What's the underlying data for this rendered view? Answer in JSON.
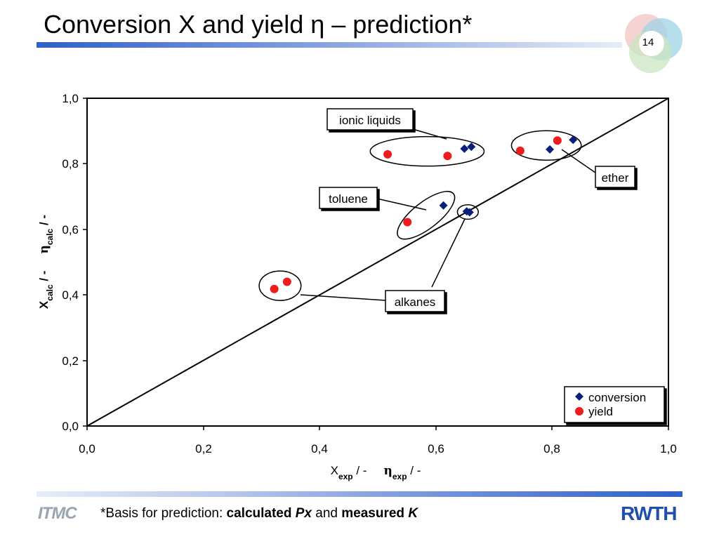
{
  "slide": {
    "title": "Conversion X and yield η – prediction*",
    "page_number": "14",
    "footnote": {
      "prefix": "*Basis for prediction: ",
      "calculated": "calculated",
      "px": "Px",
      "and": " and ",
      "measured": "measured",
      "k": "K"
    },
    "logos": {
      "left": "ITMC",
      "right": "RWTH"
    },
    "colors": {
      "rule": "#2f5fc8",
      "rwth": "#1f4fa8",
      "itmc": "#9aa4b0"
    }
  },
  "chart_data": {
    "type": "scatter",
    "xlim": [
      0.0,
      1.0
    ],
    "ylim": [
      0.0,
      1.0
    ],
    "x_ticks": [
      "0,0",
      "0,2",
      "0,4",
      "0,6",
      "0,8",
      "1,0"
    ],
    "y_ticks": [
      "0,0",
      "0,2",
      "0,4",
      "0,6",
      "0,8",
      "1,0"
    ],
    "xlabel": {
      "x": "X",
      "x_sub": "exp",
      "x_unit": " / -",
      "eta": "η",
      "eta_sub": "exp",
      "eta_unit": " / -"
    },
    "ylabel": {
      "x": "X",
      "x_sub": "calc",
      "x_unit": " / -",
      "eta": "η",
      "eta_sub": "calc",
      "eta_unit": " / -"
    },
    "grid": false,
    "legend_position": "bottom-right",
    "parity_line": [
      [
        0.0,
        0.0
      ],
      [
        1.0,
        1.0
      ]
    ],
    "series": [
      {
        "name": "conversion",
        "marker": "diamond",
        "color": "#0a1f7a",
        "points": [
          [
            0.613,
            0.673
          ],
          [
            0.649,
            0.846
          ],
          [
            0.661,
            0.852
          ],
          [
            0.653,
            0.655
          ],
          [
            0.658,
            0.652
          ],
          [
            0.796,
            0.844
          ],
          [
            0.836,
            0.873
          ]
        ]
      },
      {
        "name": "yield",
        "marker": "circle",
        "color": "#ee1c1c",
        "points": [
          [
            0.322,
            0.418
          ],
          [
            0.344,
            0.44
          ],
          [
            0.517,
            0.829
          ],
          [
            0.62,
            0.824
          ],
          [
            0.551,
            0.622
          ],
          [
            0.745,
            0.84
          ],
          [
            0.809,
            0.871
          ]
        ]
      }
    ],
    "annotations": [
      {
        "label": "ionic liquids",
        "ellipse": {
          "cx": 0.585,
          "cy": 0.838,
          "rx": 0.098,
          "ry": 0.045
        }
      },
      {
        "label": "ether",
        "ellipse": {
          "cx": 0.79,
          "cy": 0.856,
          "rx": 0.06,
          "ry": 0.045
        }
      },
      {
        "label": "toluene",
        "ellipse": {
          "cx": 0.583,
          "cy": 0.643,
          "rx": 0.06,
          "ry": 0.04,
          "rotate": -38
        }
      },
      {
        "label": "alkanes",
        "ellipse": {
          "cx": 0.655,
          "cy": 0.653,
          "rx": 0.018,
          "ry": 0.022
        }
      },
      {
        "label": "",
        "ellipse": {
          "cx": 0.332,
          "cy": 0.428,
          "rx": 0.036,
          "ry": 0.045
        }
      }
    ]
  }
}
